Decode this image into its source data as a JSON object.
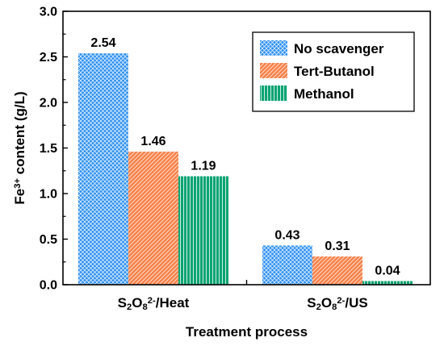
{
  "chart_data": {
    "type": "bar",
    "categories": [
      {
        "parts": [
          [
            "S",
            "n"
          ],
          [
            "2",
            "sub"
          ],
          [
            "O",
            "n"
          ],
          [
            "8",
            "sub"
          ],
          [
            "2-",
            "sup"
          ],
          [
            "/Heat",
            "n"
          ]
        ]
      },
      {
        "parts": [
          [
            "S",
            "n"
          ],
          [
            "2",
            "sub"
          ],
          [
            "O",
            "n"
          ],
          [
            "8",
            "sub"
          ],
          [
            "2-",
            "sup"
          ],
          [
            "/US",
            "n"
          ]
        ]
      }
    ],
    "series": [
      {
        "name": "No scavenger",
        "values": [
          2.54,
          0.43
        ],
        "labels": [
          "2.54",
          "0.43"
        ],
        "color": "#2b8ff0",
        "pattern": "crosshatch"
      },
      {
        "name": "Tert-Butanol",
        "values": [
          1.46,
          0.31
        ],
        "labels": [
          "1.46",
          "0.31"
        ],
        "color": "#f6824a",
        "pattern": "diagonal"
      },
      {
        "name": "Methanol",
        "values": [
          1.19,
          0.04
        ],
        "labels": [
          "1.19",
          "0.04"
        ],
        "color": "#0aa472",
        "pattern": "vertical"
      }
    ],
    "xlabel": "Treatment process",
    "ylabel_parts": [
      [
        "Fe",
        "n"
      ],
      [
        "3+",
        "sup"
      ],
      [
        " content (g/L)",
        "n"
      ]
    ],
    "ylim": [
      0,
      3.0
    ],
    "yticks": [
      "0.0",
      "0.5",
      "1.0",
      "1.5",
      "2.0",
      "2.5",
      "3.0"
    ],
    "grid": false,
    "legend_position": "top-right"
  }
}
